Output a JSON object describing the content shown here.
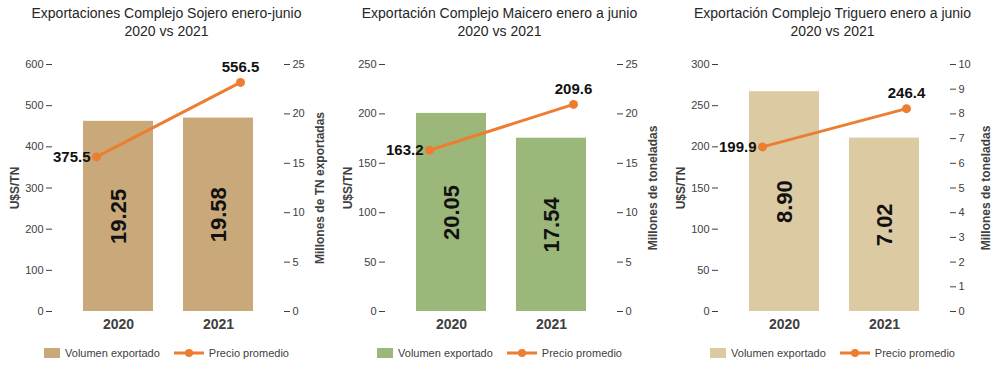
{
  "chart_data": [
    {
      "type": "bar",
      "title": "Exportaciones Complejo Sojero enero-junio\n2020 vs 2021",
      "categories": [
        "2020",
        "2021"
      ],
      "series": [
        {
          "name": "Volumen exportado",
          "type": "bar",
          "axis": "y2",
          "color": "#c9a97a",
          "values": [
            19.25,
            19.58
          ]
        },
        {
          "name": "Precio promedio",
          "type": "line",
          "color": "#ed7d31",
          "marker": "circle",
          "values": [
            375.5,
            556.5
          ]
        }
      ],
      "y_label": "U$S/TN",
      "y2_label": "Millones de TN exportadas",
      "ylim": [
        0,
        600
      ],
      "yticks": [
        0,
        100,
        200,
        300,
        400,
        500,
        600
      ],
      "y2lim": [
        0,
        25
      ],
      "y2ticks": [
        0,
        5,
        10,
        15,
        20,
        25
      ],
      "data_labels": true,
      "legend": "bottom",
      "grid": false
    },
    {
      "type": "bar",
      "title": "Exportación Complejo Maicero enero a junio\n2020 vs 2021",
      "categories": [
        "2020",
        "2021"
      ],
      "series": [
        {
          "name": "Volumen exportado",
          "type": "bar",
          "axis": "y2",
          "color": "#9bb87a",
          "values": [
            20.05,
            17.54
          ]
        },
        {
          "name": "Precio promedio",
          "type": "line",
          "color": "#ed7d31",
          "marker": "circle",
          "values": [
            163.2,
            209.6
          ]
        }
      ],
      "y_label": "U$S/TN",
      "y2_label": "Millones de toneladas",
      "ylim": [
        0,
        250
      ],
      "yticks": [
        0,
        50,
        100,
        150,
        200,
        250
      ],
      "y2lim": [
        0,
        25
      ],
      "y2ticks": [
        0,
        5,
        10,
        15,
        20,
        25
      ],
      "data_labels": true,
      "legend": "bottom",
      "grid": false
    },
    {
      "type": "bar",
      "title": "Exportación Complejo Triguero enero a junio\n2020 vs 2021",
      "categories": [
        "2020",
        "2021"
      ],
      "series": [
        {
          "name": "Volumen exportado",
          "type": "bar",
          "axis": "y2",
          "color": "#dccaa3",
          "values": [
            8.9,
            7.02
          ],
          "value_labels": [
            "8.90",
            "7.02"
          ]
        },
        {
          "name": "Precio promedio",
          "type": "line",
          "color": "#ed7d31",
          "marker": "circle",
          "values": [
            199.9,
            246.4
          ]
        }
      ],
      "y_label": "U$S/TN",
      "y2_label": "Millones de toneladas",
      "ylim": [
        0,
        300
      ],
      "yticks": [
        0,
        50,
        100,
        150,
        200,
        250,
        300
      ],
      "y2lim": [
        0,
        10
      ],
      "y2ticks": [
        0,
        1,
        2,
        3,
        4,
        5,
        6,
        7,
        8,
        9,
        10
      ],
      "data_labels": true,
      "legend": "bottom",
      "grid": false
    }
  ]
}
